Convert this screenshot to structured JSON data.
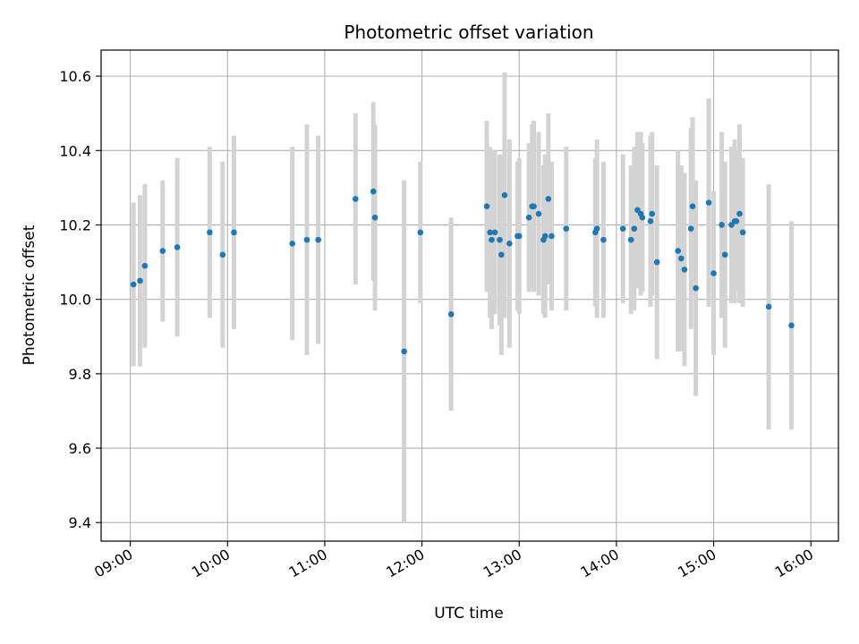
{
  "chart_data": {
    "type": "scatter",
    "title": "Photometric offset variation",
    "xlabel": "UTC time",
    "ylabel": "Photometric offset",
    "x_ticks": [
      "09:00",
      "10:00",
      "11:00",
      "12:00",
      "13:00",
      "14:00",
      "15:00",
      "16:00"
    ],
    "y_ticks": [
      "9.4",
      "9.6",
      "9.8",
      "10.0",
      "10.2",
      "10.4",
      "10.6"
    ],
    "xlim": [
      "08:42",
      "16:17"
    ],
    "ylim": [
      9.35,
      10.67
    ],
    "grid": true,
    "point_color": "#1f77b4",
    "errorbar_color": "#d3d3d3",
    "series": [
      {
        "x": [
          "09:02",
          "09:06",
          "09:09",
          "09:20",
          "09:29",
          "09:49",
          "09:57",
          "10:04",
          "10:40",
          "10:49",
          "10:56",
          "11:19",
          "11:30",
          "11:31",
          "11:49",
          "11:59",
          "12:18",
          "12:40",
          "12:42",
          "12:43",
          "12:45",
          "12:48",
          "12:49",
          "12:51",
          "12:54",
          "12:59",
          "13:00",
          "13:06",
          "13:08",
          "13:09",
          "13:12",
          "13:15",
          "13:16",
          "13:18",
          "13:20",
          "13:29",
          "13:47",
          "13:48",
          "13:52",
          "14:04",
          "14:09",
          "14:11",
          "14:13",
          "14:15",
          "14:16",
          "14:21",
          "14:22",
          "14:25",
          "14:38",
          "14:40",
          "14:42",
          "14:46",
          "14:47",
          "14:49",
          "14:57",
          "15:00",
          "15:05",
          "15:07",
          "15:11",
          "15:13",
          "15:14",
          "15:16",
          "15:18",
          "15:34",
          "15:48"
        ],
        "y": [
          10.04,
          10.05,
          10.09,
          10.13,
          10.14,
          10.18,
          10.12,
          10.18,
          10.15,
          10.16,
          10.16,
          10.27,
          10.29,
          10.22,
          9.86,
          10.18,
          9.96,
          10.25,
          10.18,
          10.16,
          10.18,
          10.16,
          10.12,
          10.28,
          10.15,
          10.17,
          10.17,
          10.22,
          10.25,
          10.25,
          10.23,
          10.16,
          10.17,
          10.27,
          10.17,
          10.19,
          10.18,
          10.19,
          10.16,
          10.19,
          10.16,
          10.19,
          10.24,
          10.23,
          10.22,
          10.21,
          10.23,
          10.1,
          10.13,
          10.11,
          10.08,
          10.19,
          10.25,
          10.03,
          10.26,
          10.07,
          10.2,
          10.12,
          10.2,
          10.21,
          10.21,
          10.23,
          10.18,
          9.98,
          9.93
        ],
        "err": [
          0.22,
          0.23,
          0.22,
          0.19,
          0.24,
          0.23,
          0.25,
          0.26,
          0.26,
          0.31,
          0.28,
          0.23,
          0.24,
          0.25,
          0.46,
          0.19,
          0.26,
          0.23,
          0.23,
          0.24,
          0.22,
          0.23,
          0.27,
          0.33,
          0.28,
          0.2,
          0.21,
          0.2,
          0.22,
          0.23,
          0.22,
          0.2,
          0.22,
          0.23,
          0.2,
          0.22,
          0.2,
          0.24,
          0.21,
          0.2,
          0.2,
          0.22,
          0.21,
          0.22,
          0.2,
          0.23,
          0.22,
          0.26,
          0.27,
          0.25,
          0.26,
          0.27,
          0.24,
          0.29,
          0.28,
          0.22,
          0.25,
          0.25,
          0.21,
          0.22,
          0.19,
          0.24,
          0.2,
          0.33,
          0.28
        ]
      }
    ]
  }
}
